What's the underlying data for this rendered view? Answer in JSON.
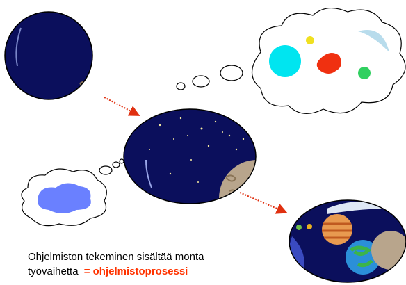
{
  "caption": {
    "line1": "Ohjelmiston tekeminen sisältää monta",
    "line2": "työvaihetta",
    "highlight": "= ohjelmistoprosessi"
  }
}
